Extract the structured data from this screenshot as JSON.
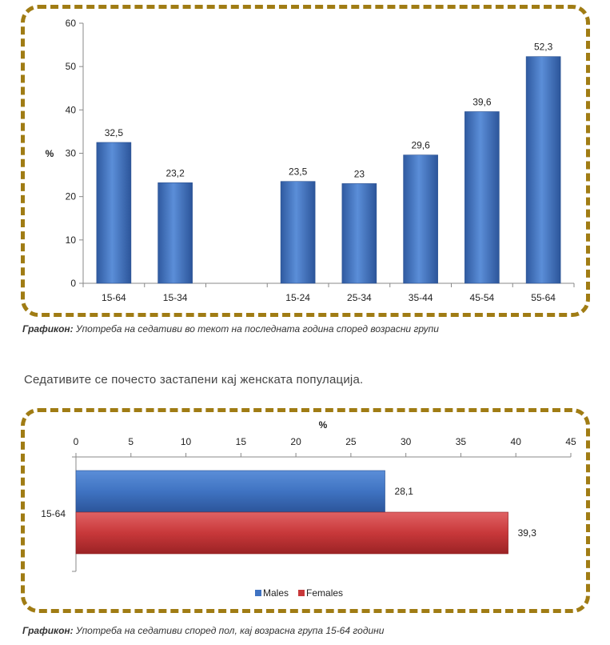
{
  "colors": {
    "frame": "#a07c14",
    "bar_blue": "#3f73c2",
    "bar_red": "#c8383a",
    "axis": "#888888"
  },
  "chart_data": [
    {
      "type": "bar",
      "categories": [
        "15-64",
        "15-34",
        "",
        "15-24",
        "25-34",
        "35-44",
        "45-54",
        "55-64"
      ],
      "values": [
        32.5,
        23.2,
        null,
        23.5,
        23,
        29.6,
        39.6,
        52.3
      ],
      "value_labels": [
        "32,5",
        "23,2",
        "",
        "23,5",
        "23",
        "29,6",
        "39,6",
        "52,3"
      ],
      "yticks": [
        "0",
        "10",
        "20",
        "30",
        "40",
        "50",
        "60"
      ],
      "ylim": [
        0,
        60
      ],
      "ylabel": "%",
      "grid": false
    },
    {
      "type": "bar",
      "orientation": "horizontal",
      "categories": [
        "15-64"
      ],
      "series": [
        {
          "name": "Males",
          "values": [
            28.1
          ],
          "value_labels": [
            "28,1"
          ],
          "color": "#3f73c2"
        },
        {
          "name": "Females",
          "values": [
            39.3
          ],
          "value_labels": [
            "39,3"
          ],
          "color": "#c8383a"
        }
      ],
      "xticks": [
        "0",
        "5",
        "10",
        "15",
        "20",
        "25",
        "30",
        "35",
        "40",
        "45"
      ],
      "xlim": [
        0,
        45
      ],
      "xlabel": "%",
      "legend": "bottom",
      "grid": false
    }
  ],
  "captions": {
    "cap1_label": "Графикон:",
    "cap1_text": "Употреба на седативи во текот на последната година според возрасни групи",
    "body": "Седативите се почесто застапени кај женската популација.",
    "cap2_label": "Графикон:",
    "cap2_text": "Употреба на седативи според пол, кај возрасна група 15-64 години"
  }
}
